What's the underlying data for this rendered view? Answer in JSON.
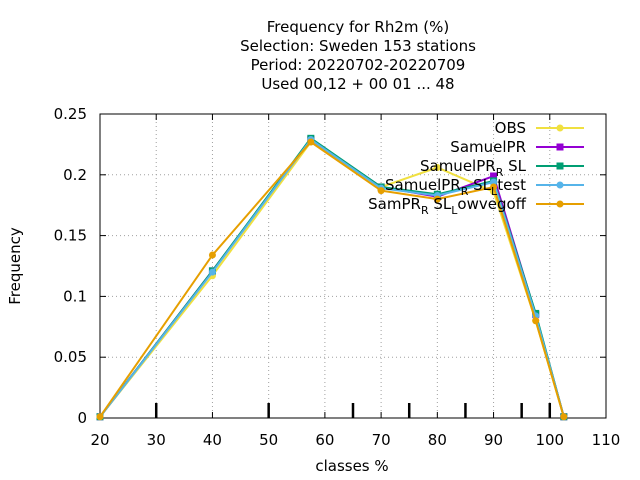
{
  "chart_data": {
    "type": "line",
    "title_lines": [
      "Frequency  for Rh2m (%)",
      "Selection: Sweden    153 stations",
      "Period: 20220702-20220709",
      "Used  00,12  + 00 01 ... 48"
    ],
    "xlabel": "classes %",
    "ylabel": "Frequency",
    "xlim": [
      20,
      110
    ],
    "ylim": [
      0,
      0.25
    ],
    "x_ticks": [
      20,
      30,
      40,
      50,
      60,
      70,
      80,
      90,
      100,
      110
    ],
    "y_ticks": [
      0,
      0.05,
      0.1,
      0.15,
      0.2,
      0.25
    ],
    "y_tick_labels": [
      "0",
      "0.05",
      "0.1",
      "0.15",
      "0.2",
      "0.25"
    ],
    "class_marks": [
      30,
      50,
      65,
      75,
      85,
      95,
      100
    ],
    "grid": true,
    "legend_position": "top-right",
    "x": [
      20,
      40,
      57.5,
      70,
      80,
      90,
      97.5,
      102.5
    ],
    "series": [
      {
        "name": "OBS",
        "color": "#f0e040",
        "marker": "circle",
        "values": [
          0.001,
          0.117,
          0.227,
          0.19,
          0.206,
          0.186,
          0.08,
          0.001
        ]
      },
      {
        "name": "SamuelPR",
        "color": "#9400d3",
        "marker": "square",
        "values": [
          0.001,
          0.121,
          0.229,
          0.19,
          0.182,
          0.199,
          0.085,
          0.001
        ]
      },
      {
        "name": "SamuelPR_R SL",
        "color": "#009e73",
        "marker": "square",
        "values": [
          0.001,
          0.121,
          0.23,
          0.19,
          0.184,
          0.195,
          0.086,
          0.001
        ]
      },
      {
        "name": "SamuelPR_R SL_Ltest",
        "color": "#56b4e9",
        "marker": "circle",
        "values": [
          0.001,
          0.12,
          0.229,
          0.189,
          0.183,
          0.194,
          0.084,
          0.001
        ]
      },
      {
        "name": "SamPR_R SL_Lowvegoff",
        "color": "#e69f00",
        "marker": "circle",
        "values": [
          0.001,
          0.134,
          0.227,
          0.187,
          0.18,
          0.19,
          0.08,
          0.001
        ]
      }
    ]
  }
}
